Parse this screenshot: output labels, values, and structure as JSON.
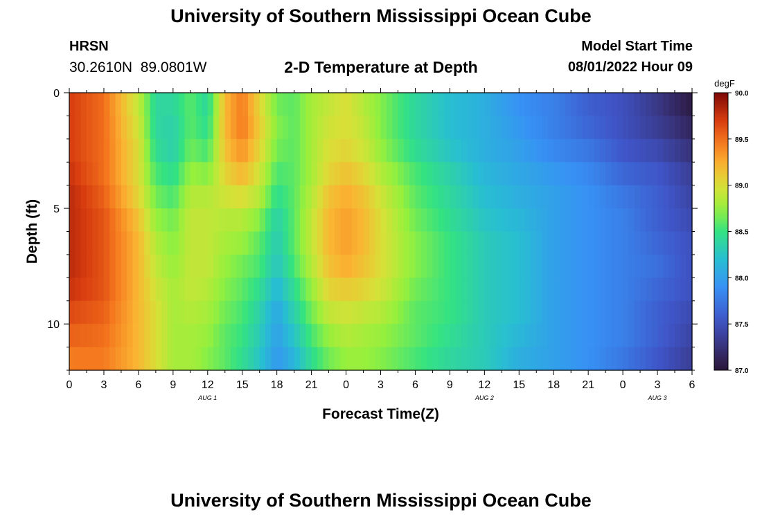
{
  "header": {
    "title": "University of Southern Mississippi Ocean Cube",
    "station": "HRSN",
    "coords": "30.2610N  89.0801W",
    "start_label": "Model Start Time",
    "start_value": "08/01/2022 Hour 09"
  },
  "footer": {
    "title": "University of Southern Mississippi Ocean Cube"
  },
  "chart_data": {
    "type": "heatmap",
    "title": "2-D Temperature at Depth",
    "xlabel": "Forecast Time(Z)",
    "ylabel": "Depth (ft)",
    "colorbar_label": "degF",
    "colorbar_ticks": [
      87.0,
      87.5,
      88.0,
      88.5,
      89.0,
      89.5,
      90.0
    ],
    "colorbar_tick_labels": [
      "87.0",
      "87.5",
      "88.0",
      "88.5",
      "89.0",
      "89.5",
      "90.0"
    ],
    "zlim": [
      87.0,
      90.0
    ],
    "xlim": [
      0,
      54
    ],
    "ylim": [
      0,
      12
    ],
    "x_ticks": [
      0,
      3,
      6,
      9,
      12,
      15,
      18,
      21,
      24,
      27,
      30,
      33,
      36,
      39,
      42,
      45,
      48,
      51,
      54
    ],
    "x_tick_labels": [
      "0",
      "3",
      "6",
      "9",
      "12",
      "15",
      "18",
      "21",
      "0",
      "3",
      "6",
      "9",
      "12",
      "15",
      "18",
      "21",
      "0",
      "3",
      "6"
    ],
    "y_ticks": [
      0,
      5,
      10
    ],
    "y_tick_labels": [
      "0",
      "5",
      "10"
    ],
    "date_labels": [
      {
        "label": "AUG 1",
        "x": 12
      },
      {
        "label": "AUG 2",
        "x": 36
      },
      {
        "label": "AUG 3",
        "x": 51
      }
    ],
    "x": [
      0,
      3,
      6,
      7.5,
      9,
      10.5,
      12,
      13.5,
      15,
      16.5,
      18,
      19.5,
      21,
      22.5,
      24,
      25.5,
      27,
      30,
      33,
      36,
      39,
      42,
      45,
      48,
      51,
      54
    ],
    "y": [
      0,
      1,
      2,
      3,
      4,
      5,
      6,
      7,
      8,
      9,
      10,
      11,
      12
    ],
    "z": [
      [
        89.7,
        89.5,
        88.9,
        88.4,
        88.4,
        88.6,
        88.4,
        89.2,
        89.4,
        89.0,
        88.6,
        88.6,
        88.8,
        88.9,
        89.0,
        88.8,
        88.7,
        88.4,
        88.2,
        88.1,
        87.9,
        87.8,
        87.6,
        87.5,
        87.3,
        87.0
      ],
      [
        89.7,
        89.5,
        88.9,
        88.4,
        88.4,
        88.6,
        88.4,
        89.2,
        89.5,
        89.1,
        88.7,
        88.6,
        88.8,
        88.9,
        89.0,
        88.9,
        88.7,
        88.4,
        88.2,
        88.1,
        87.9,
        87.8,
        87.6,
        87.5,
        87.3,
        87.1
      ],
      [
        89.7,
        89.5,
        89.0,
        88.4,
        88.3,
        88.6,
        88.5,
        89.2,
        89.4,
        89.1,
        88.7,
        88.6,
        88.8,
        89.0,
        89.0,
        88.9,
        88.7,
        88.4,
        88.2,
        88.1,
        88.0,
        87.8,
        87.7,
        87.5,
        87.4,
        87.2
      ],
      [
        89.7,
        89.5,
        89.0,
        88.5,
        88.4,
        88.7,
        88.6,
        89.1,
        89.3,
        89.0,
        88.6,
        88.6,
        88.8,
        89.0,
        89.1,
        89.0,
        88.8,
        88.5,
        88.3,
        88.1,
        88.0,
        87.9,
        87.8,
        87.6,
        87.5,
        87.3
      ],
      [
        89.8,
        89.5,
        89.0,
        88.6,
        88.5,
        88.8,
        88.8,
        89.0,
        89.1,
        88.9,
        88.5,
        88.6,
        88.8,
        89.1,
        89.2,
        89.1,
        88.9,
        88.6,
        88.4,
        88.2,
        88.1,
        88.0,
        87.9,
        87.7,
        87.6,
        87.4
      ],
      [
        89.8,
        89.6,
        89.1,
        88.7,
        88.6,
        88.9,
        88.9,
        88.9,
        88.9,
        88.8,
        88.4,
        88.6,
        88.9,
        89.2,
        89.3,
        89.2,
        89.0,
        88.6,
        88.4,
        88.2,
        88.1,
        88.0,
        87.9,
        87.8,
        87.6,
        87.4
      ],
      [
        89.8,
        89.6,
        89.2,
        88.8,
        88.7,
        88.9,
        88.9,
        88.8,
        88.8,
        88.6,
        88.3,
        88.6,
        88.9,
        89.2,
        89.3,
        89.2,
        89.0,
        88.7,
        88.5,
        88.3,
        88.2,
        88.0,
        87.9,
        87.8,
        87.6,
        87.5
      ],
      [
        89.8,
        89.6,
        89.2,
        88.9,
        88.7,
        88.9,
        88.9,
        88.8,
        88.7,
        88.6,
        88.3,
        88.6,
        88.9,
        89.2,
        89.3,
        89.2,
        89.0,
        88.7,
        88.5,
        88.3,
        88.2,
        88.0,
        87.9,
        87.8,
        87.7,
        87.5
      ],
      [
        89.8,
        89.6,
        89.2,
        88.9,
        88.8,
        88.9,
        88.9,
        88.7,
        88.6,
        88.5,
        88.2,
        88.5,
        88.8,
        89.1,
        89.2,
        89.1,
        89.0,
        88.7,
        88.5,
        88.3,
        88.2,
        88.0,
        87.9,
        87.8,
        87.7,
        87.5
      ],
      [
        89.7,
        89.6,
        89.2,
        89.0,
        88.8,
        88.9,
        88.8,
        88.7,
        88.6,
        88.4,
        88.1,
        88.4,
        88.7,
        89.0,
        89.0,
        89.0,
        88.9,
        88.6,
        88.5,
        88.3,
        88.2,
        88.0,
        87.9,
        87.8,
        87.6,
        87.5
      ],
      [
        89.6,
        89.5,
        89.2,
        89.0,
        88.8,
        88.8,
        88.8,
        88.6,
        88.5,
        88.3,
        88.0,
        88.3,
        88.6,
        88.8,
        88.9,
        88.8,
        88.8,
        88.6,
        88.5,
        88.3,
        88.2,
        88.0,
        87.9,
        87.8,
        87.6,
        87.4
      ],
      [
        89.5,
        89.5,
        89.2,
        89.0,
        88.8,
        88.8,
        88.7,
        88.6,
        88.5,
        88.3,
        88.0,
        88.2,
        88.5,
        88.7,
        88.8,
        88.8,
        88.7,
        88.6,
        88.4,
        88.3,
        88.1,
        88.0,
        87.9,
        87.8,
        87.6,
        87.4
      ],
      [
        89.4,
        89.4,
        89.2,
        89.0,
        88.8,
        88.8,
        88.7,
        88.6,
        88.4,
        88.2,
        87.9,
        88.1,
        88.4,
        88.6,
        88.7,
        88.7,
        88.7,
        88.5,
        88.4,
        88.3,
        88.1,
        88.0,
        87.9,
        87.7,
        87.5,
        87.3
      ]
    ]
  }
}
